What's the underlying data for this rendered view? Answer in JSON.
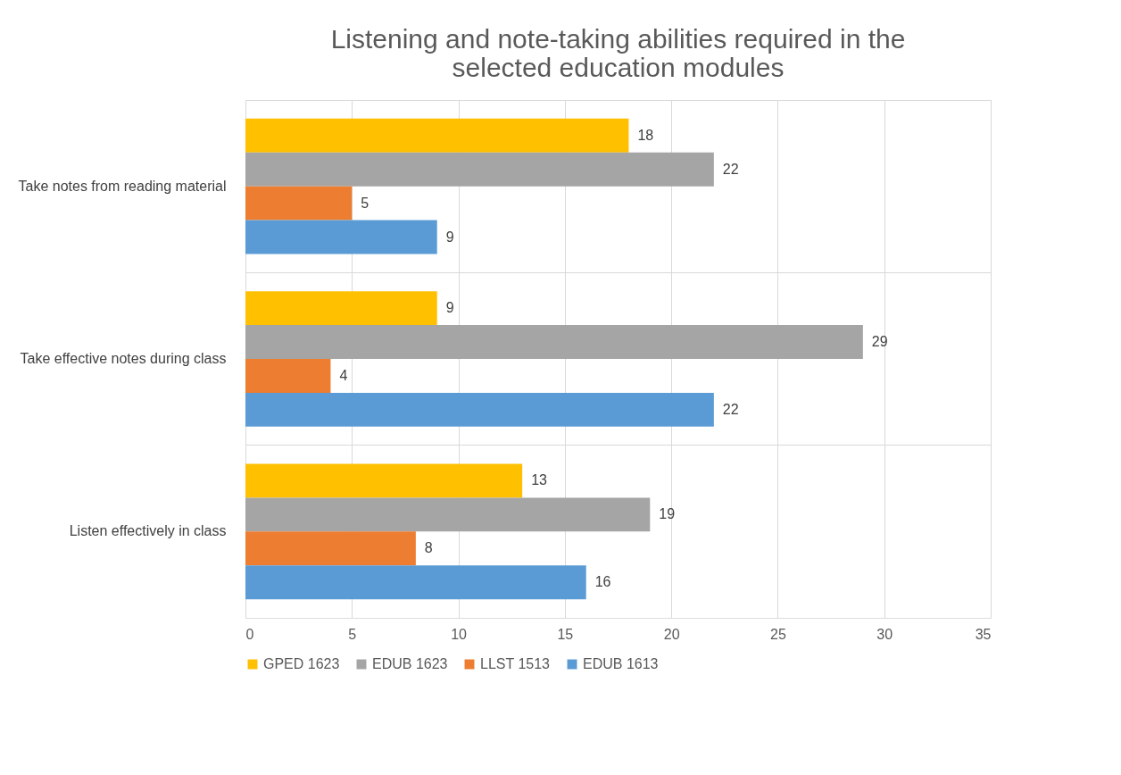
{
  "chart_data": {
    "type": "bar",
    "orientation": "horizontal",
    "title": "Listening and note-taking abilities required in the selected education modules",
    "categories": [
      "Take notes from reading material",
      "Take effective notes during class",
      "Listen effectively in class"
    ],
    "series": [
      {
        "name": "GPED 1623",
        "color": "#ffc000",
        "values": [
          18,
          9,
          13
        ]
      },
      {
        "name": "EDUB 1623",
        "color": "#a5a5a5",
        "values": [
          22,
          29,
          19
        ]
      },
      {
        "name": "LLST 1513",
        "color": "#ed7d31",
        "values": [
          5,
          4,
          8
        ]
      },
      {
        "name": "EDUB 1613",
        "color": "#5b9bd5",
        "values": [
          9,
          22,
          16
        ]
      }
    ],
    "xlim": [
      0,
      35
    ],
    "xticks": [
      0,
      5,
      10,
      15,
      20,
      25,
      30,
      35
    ],
    "grid": true,
    "legend": "bottom",
    "data_labels": true
  }
}
